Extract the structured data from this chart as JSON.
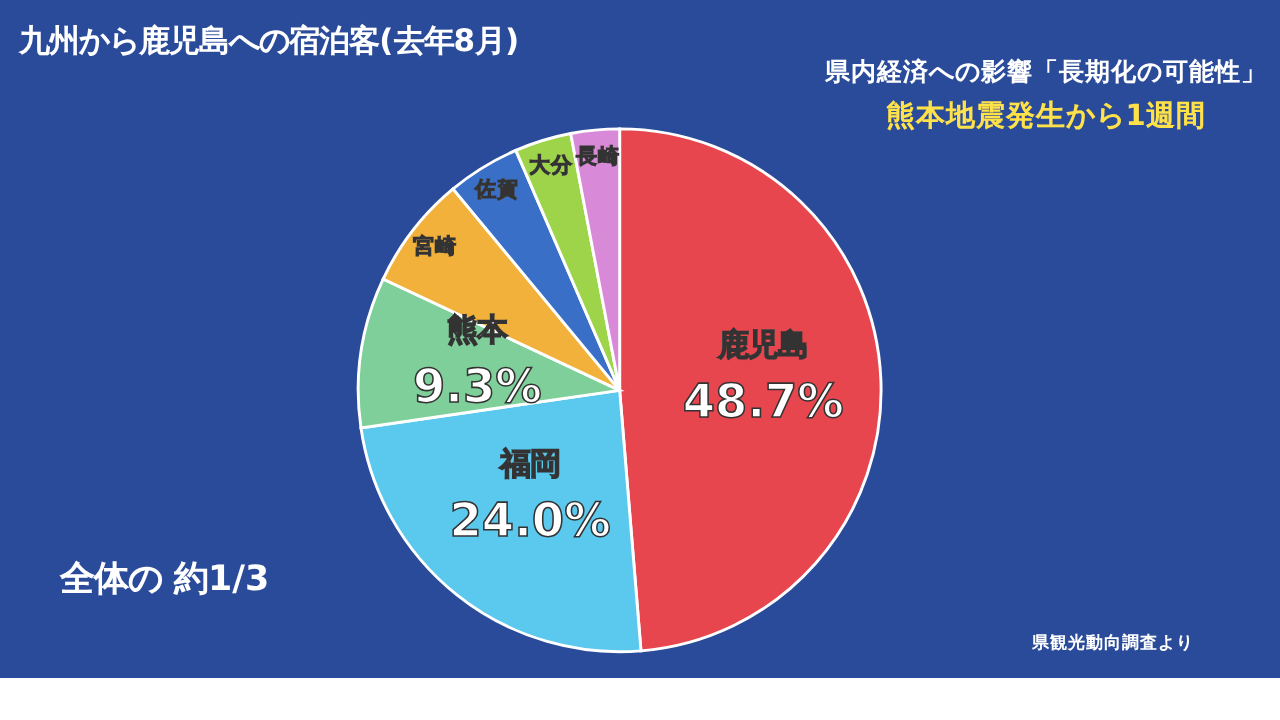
{
  "chart_data": {
    "type": "pie",
    "title": "九州から鹿児島への宿泊客(去年8月)",
    "categories": [
      "鹿児島",
      "福岡",
      "熊本",
      "宮崎",
      "佐賀",
      "大分",
      "長崎"
    ],
    "values": [
      48.7,
      24.0,
      9.3,
      7.0,
      4.5,
      3.5,
      3.0
    ],
    "value_labels": [
      "48.7%",
      "24.0%",
      "9.3%",
      null,
      null,
      null,
      null
    ],
    "colors": [
      "#e8464f",
      "#5bc8ee",
      "#7fcf9a",
      "#f2b13a",
      "#3a6fc8",
      "#9ed44a",
      "#d889d8"
    ],
    "annotations": [
      "県内経済への影響「長期化の可能性」",
      "熊本地震発生から1週間",
      "全体の 約1/3",
      "県観光動向調査より"
    ]
  }
}
